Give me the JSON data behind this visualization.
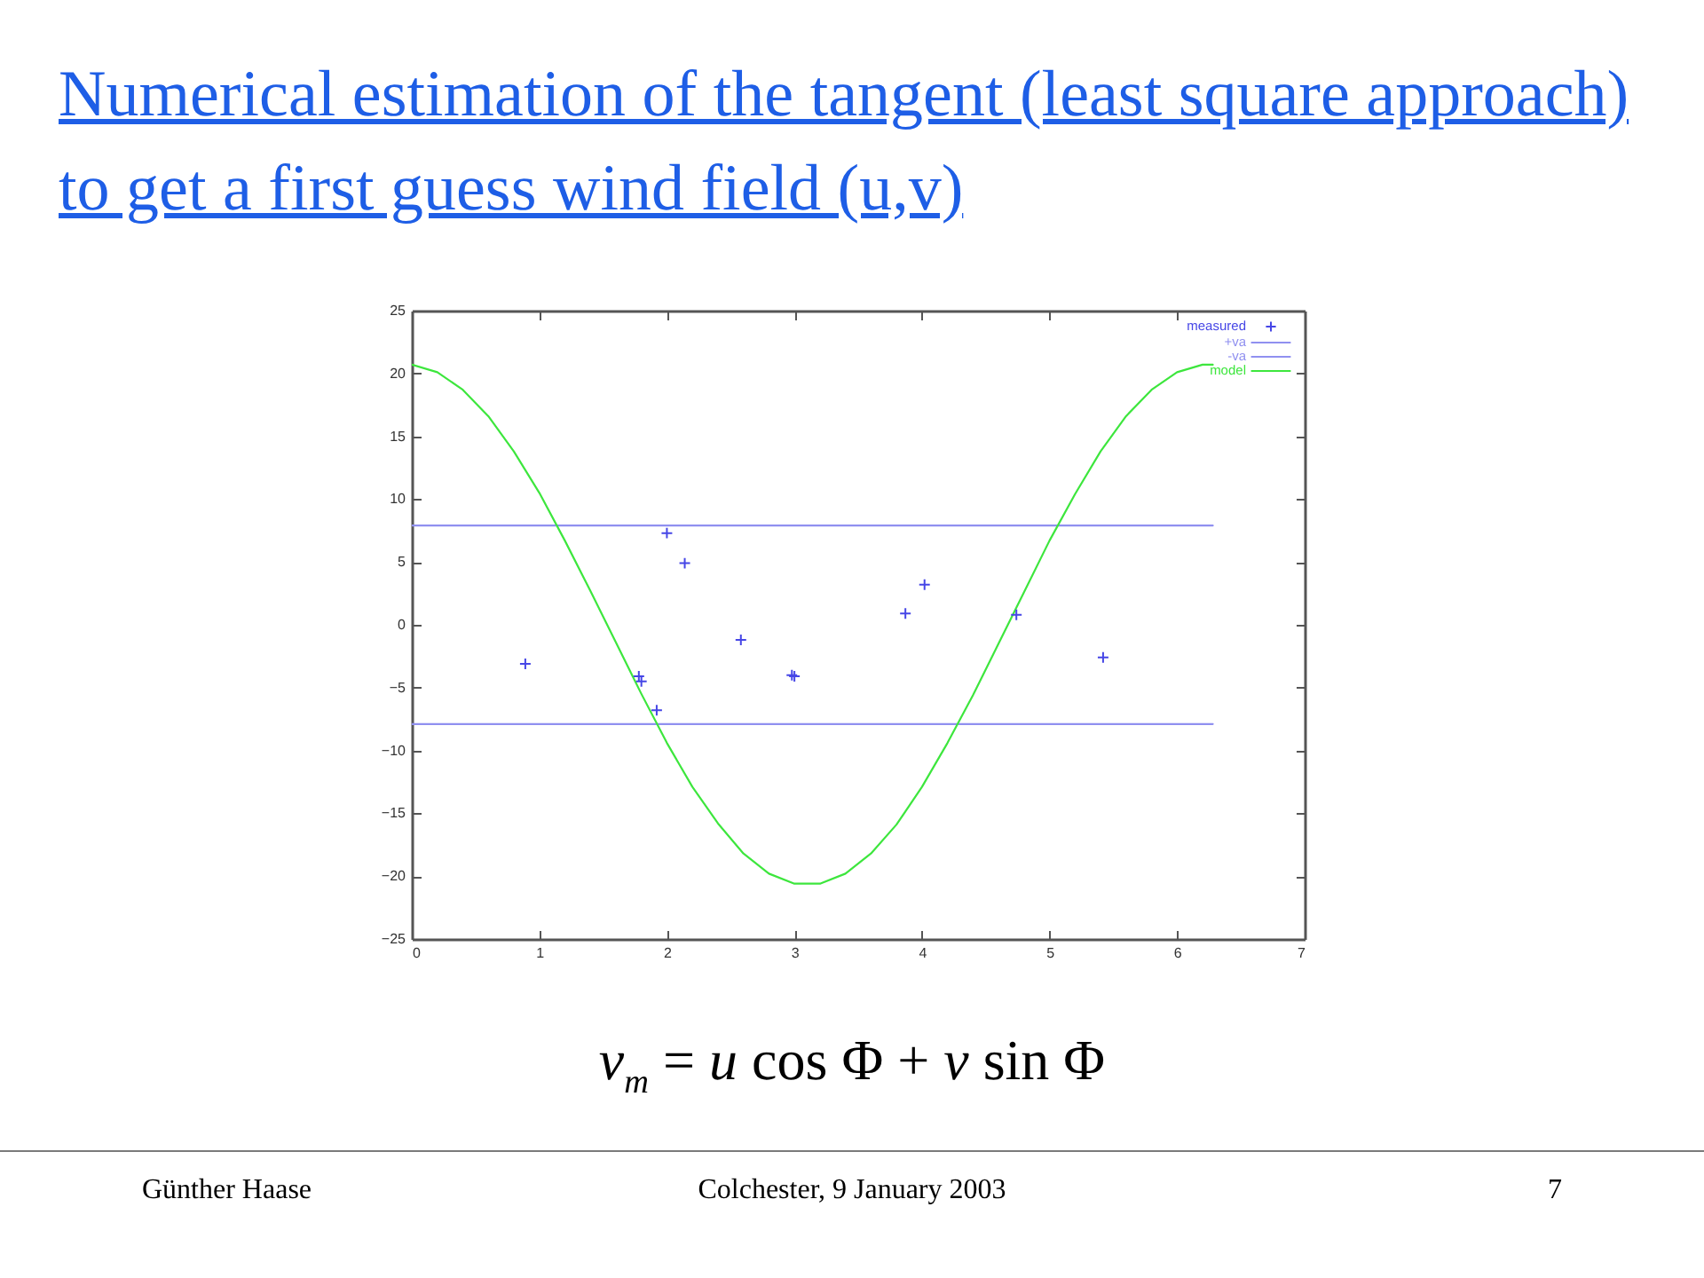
{
  "chart_data": {
    "type": "line",
    "title": "Numerical estimation of the tangent (least square approach) to get a first guess wind field (u,v)",
    "xlim": [
      0,
      7
    ],
    "xticks": [
      0,
      1,
      2,
      3,
      4,
      5,
      6,
      7
    ],
    "ylim": [
      -25,
      25
    ],
    "yticks": [
      -25,
      -20,
      -15,
      -10,
      -5,
      0,
      5,
      10,
      15,
      20,
      25
    ],
    "legend": "top right",
    "series": [
      {
        "name": "measured",
        "type": "scatter",
        "marker": "cross",
        "color": "#4646e6",
        "x": [
          0.89,
          1.78,
          1.8,
          1.92,
          2.0,
          2.14,
          2.58,
          2.98,
          3.0,
          3.87,
          4.02,
          4.74,
          5.42
        ],
        "values": [
          -3.1,
          -4.1,
          -4.5,
          -6.8,
          7.3,
          4.9,
          -1.2,
          -4.0,
          -4.1,
          0.9,
          3.2,
          0.8,
          -2.6
        ]
      },
      {
        "name": "+va",
        "type": "line",
        "color": "#9090f0",
        "x": [
          0,
          6.28
        ],
        "values": [
          7.9,
          7.9
        ]
      },
      {
        "name": "-va",
        "type": "line",
        "color": "#9090f0",
        "x": [
          0,
          6.28
        ],
        "values": [
          -7.9,
          -7.9
        ]
      },
      {
        "name": "model",
        "type": "line",
        "color": "#3de63d",
        "x": [
          0,
          0.2,
          0.4,
          0.6,
          0.8,
          1.0,
          1.2,
          1.4,
          1.6,
          1.8,
          2.0,
          2.2,
          2.4,
          2.6,
          2.8,
          3.0,
          3.2,
          3.4,
          3.6,
          3.8,
          4.0,
          4.2,
          4.4,
          4.6,
          4.8,
          5.0,
          5.2,
          5.4,
          5.6,
          5.8,
          6.0,
          6.2,
          6.28
        ],
        "values": [
          20.7,
          20.1,
          18.7,
          16.6,
          13.8,
          10.5,
          6.7,
          2.7,
          -1.4,
          -5.5,
          -9.4,
          -12.9,
          -15.8,
          -18.2,
          -19.8,
          -20.6,
          -20.6,
          -19.8,
          -18.2,
          -15.9,
          -12.9,
          -9.4,
          -5.6,
          -1.5,
          2.6,
          6.7,
          10.4,
          13.8,
          16.6,
          18.7,
          20.1,
          20.7,
          20.7
        ]
      }
    ],
    "annotations": [
      "v$_{m}$ = u cos Φ + v sin Φ",
      "Günther Haase",
      "Colchester, 9 January 2003",
      "7"
    ]
  }
}
